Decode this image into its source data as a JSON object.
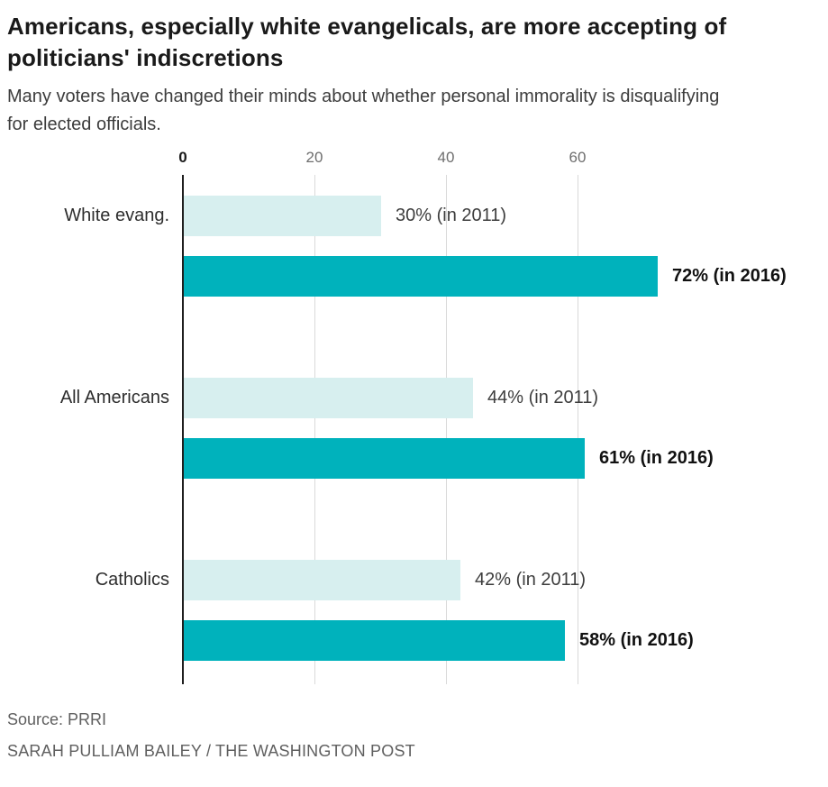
{
  "header": {
    "title": "Americans, especially white evangelicals, are more accepting of politicians' indiscretions",
    "subtitle": "Many voters have changed their minds about whether personal immorality is disqualifying for elected officials."
  },
  "footer": {
    "source": "Source: PRRI",
    "byline": "SARAH PULLIAM BAILEY / THE WASHINGTON POST"
  },
  "chart_data": {
    "type": "bar",
    "orientation": "horizontal",
    "title": "Americans, especially white evangelicals, are more accepting of politicians' indiscretions",
    "subtitle": "Many voters have changed their minds about whether personal immorality is disqualifying for elected officials.",
    "categories": [
      "White evang.",
      "All Americans",
      "Catholics"
    ],
    "series": [
      {
        "name": "in 2011",
        "values": [
          30,
          44,
          42
        ],
        "labels": [
          "30% (in 2011)",
          "44% (in 2011)",
          "42% (in 2011)"
        ],
        "color": "#d7efef",
        "label_style": "regular"
      },
      {
        "name": "in 2016",
        "values": [
          72,
          61,
          58
        ],
        "labels": [
          "72% (in 2016)",
          "61% (in 2016)",
          "58% (in 2016)"
        ],
        "color": "#00b2bc",
        "label_style": "bold"
      }
    ],
    "x_ticks": [
      0,
      20,
      40,
      60
    ],
    "xlim": [
      0,
      80
    ],
    "grid": "vertical",
    "legend": "none",
    "colors": {
      "bar_2011": "#d7efef",
      "bar_2016": "#00b2bc",
      "gridline": "#d9d9d9",
      "axis_line": "#1f1f1f"
    }
  }
}
